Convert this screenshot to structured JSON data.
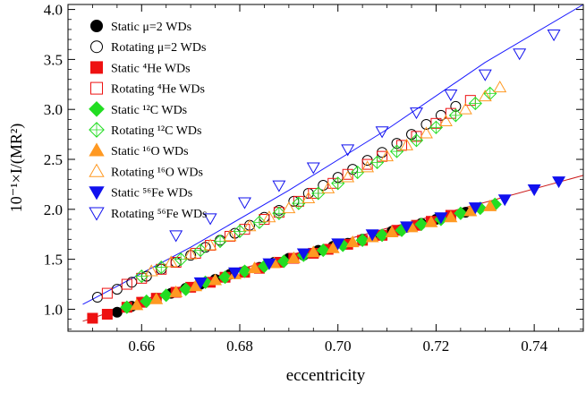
{
  "chart_data": {
    "type": "scatter",
    "xlabel": "eccentricity",
    "ylabel": "10⁻¹×I/(MR²)",
    "xlim": [
      0.645,
      0.75
    ],
    "ylim": [
      0.78,
      4.05
    ],
    "xticks": [
      "0.66",
      "0.68",
      "0.70",
      "0.72",
      "0.74"
    ],
    "xtick_values": [
      0.66,
      0.68,
      0.7,
      0.72,
      0.74
    ],
    "yticks": [
      "1.0",
      "1.5",
      "2.0",
      "2.5",
      "3.0",
      "3.5",
      "4.0"
    ],
    "ytick_values": [
      1.0,
      1.5,
      2.0,
      2.5,
      3.0,
      3.5,
      4.0
    ],
    "legend_position": "top-left",
    "fit_lines": [
      {
        "color": "#1a1aff",
        "x": [
          0.648,
          0.65,
          0.67,
          0.69,
          0.71,
          0.73,
          0.75
        ],
        "y": [
          1.05,
          1.1,
          1.62,
          2.19,
          2.8,
          3.47,
          4.05
        ]
      },
      {
        "color": "#cc1a1a",
        "x": [
          0.648,
          0.65,
          0.67,
          0.69,
          0.71,
          0.73,
          0.75
        ],
        "y": [
          0.88,
          0.91,
          1.26,
          1.54,
          1.81,
          2.07,
          2.34
        ]
      }
    ],
    "series": [
      {
        "name": "Static μ=2 WDs",
        "marker": "circle",
        "filled": true,
        "color": "#000000",
        "x": [
          0.655,
          0.658,
          0.66,
          0.663,
          0.666,
          0.669,
          0.672,
          0.675,
          0.678,
          0.681,
          0.684,
          0.687,
          0.69,
          0.693,
          0.696,
          0.699,
          0.702,
          0.705,
          0.708,
          0.711,
          0.714,
          0.717,
          0.72,
          0.723,
          0.726
        ],
        "y": [
          0.97,
          1.03,
          1.07,
          1.11,
          1.16,
          1.21,
          1.25,
          1.3,
          1.35,
          1.38,
          1.42,
          1.47,
          1.51,
          1.54,
          1.59,
          1.63,
          1.66,
          1.7,
          1.74,
          1.78,
          1.82,
          1.86,
          1.9,
          1.94,
          1.97
        ]
      },
      {
        "name": "Rotating μ=2 WDs",
        "marker": "circle",
        "filled": false,
        "color": "#000000",
        "x": [
          0.651,
          0.655,
          0.658,
          0.661,
          0.664,
          0.667,
          0.67,
          0.673,
          0.676,
          0.679,
          0.682,
          0.685,
          0.688,
          0.691,
          0.694,
          0.697,
          0.7,
          0.703,
          0.706,
          0.709,
          0.712,
          0.715,
          0.718,
          0.721,
          0.724
        ],
        "y": [
          1.12,
          1.2,
          1.27,
          1.33,
          1.4,
          1.47,
          1.54,
          1.62,
          1.69,
          1.76,
          1.84,
          1.92,
          1.99,
          2.08,
          2.16,
          2.24,
          2.32,
          2.4,
          2.49,
          2.57,
          2.66,
          2.75,
          2.85,
          2.94,
          3.03
        ]
      },
      {
        "name": "Static ⁴He WDs",
        "marker": "square",
        "filled": true,
        "color": "#ee1111",
        "x": [
          0.65,
          0.653,
          0.657,
          0.66,
          0.663,
          0.667,
          0.67,
          0.674,
          0.677,
          0.681,
          0.684,
          0.688,
          0.691,
          0.695,
          0.698,
          0.702,
          0.705,
          0.709,
          0.712,
          0.716,
          0.719,
          0.723
        ],
        "y": [
          0.91,
          0.95,
          1.02,
          1.07,
          1.11,
          1.17,
          1.22,
          1.27,
          1.32,
          1.37,
          1.41,
          1.47,
          1.51,
          1.56,
          1.6,
          1.65,
          1.69,
          1.74,
          1.79,
          1.84,
          1.88,
          1.94
        ]
      },
      {
        "name": "Rotating ⁴He WDs",
        "marker": "square",
        "filled": false,
        "color": "#ee1111",
        "x": [
          0.653,
          0.657,
          0.66,
          0.664,
          0.667,
          0.671,
          0.674,
          0.678,
          0.681,
          0.685,
          0.688,
          0.692,
          0.695,
          0.699,
          0.702,
          0.706,
          0.709,
          0.713,
          0.716,
          0.72,
          0.723,
          0.727
        ],
        "y": [
          1.16,
          1.25,
          1.31,
          1.4,
          1.47,
          1.56,
          1.64,
          1.73,
          1.8,
          1.9,
          1.97,
          2.08,
          2.16,
          2.26,
          2.35,
          2.45,
          2.53,
          2.64,
          2.73,
          2.86,
          2.96,
          3.09
        ]
      },
      {
        "name": "Static ¹²C WDs",
        "marker": "diamond",
        "filled": true,
        "color": "#22dd22",
        "x": [
          0.657,
          0.661,
          0.665,
          0.669,
          0.673,
          0.677,
          0.681,
          0.685,
          0.689,
          0.693,
          0.697,
          0.701,
          0.705,
          0.709,
          0.713,
          0.717,
          0.721,
          0.725,
          0.729,
          0.732
        ],
        "y": [
          1.02,
          1.08,
          1.14,
          1.2,
          1.27,
          1.32,
          1.38,
          1.43,
          1.48,
          1.54,
          1.59,
          1.64,
          1.69,
          1.74,
          1.79,
          1.85,
          1.9,
          1.96,
          2.01,
          2.05
        ]
      },
      {
        "name": "Rotating ¹²C WDs",
        "marker": "diamond",
        "filled": false,
        "color": "#22dd22",
        "x": [
          0.66,
          0.664,
          0.668,
          0.672,
          0.676,
          0.68,
          0.684,
          0.688,
          0.692,
          0.696,
          0.7,
          0.704,
          0.708,
          0.712,
          0.716,
          0.72,
          0.724,
          0.728,
          0.731
        ],
        "y": [
          1.33,
          1.42,
          1.5,
          1.59,
          1.68,
          1.78,
          1.87,
          1.96,
          2.06,
          2.16,
          2.26,
          2.37,
          2.47,
          2.58,
          2.69,
          2.82,
          2.94,
          3.06,
          3.16
        ]
      },
      {
        "name": "Static ¹⁶O WDs",
        "marker": "triangle-up",
        "filled": true,
        "color": "#ff9922",
        "x": [
          0.659,
          0.663,
          0.667,
          0.671,
          0.675,
          0.679,
          0.683,
          0.687,
          0.691,
          0.695,
          0.699,
          0.703,
          0.707,
          0.711,
          0.715,
          0.719,
          0.723,
          0.727,
          0.731
        ],
        "y": [
          1.04,
          1.1,
          1.17,
          1.23,
          1.29,
          1.35,
          1.41,
          1.46,
          1.51,
          1.57,
          1.61,
          1.67,
          1.72,
          1.77,
          1.82,
          1.87,
          1.92,
          1.98,
          2.03
        ]
      },
      {
        "name": "Rotating ¹⁶O WDs",
        "marker": "triangle-up",
        "filled": false,
        "color": "#ff9922",
        "x": [
          0.662,
          0.666,
          0.67,
          0.674,
          0.678,
          0.682,
          0.686,
          0.69,
          0.694,
          0.698,
          0.702,
          0.706,
          0.71,
          0.714,
          0.718,
          0.722,
          0.726,
          0.73,
          0.733
        ],
        "y": [
          1.38,
          1.47,
          1.55,
          1.64,
          1.73,
          1.83,
          1.92,
          2.01,
          2.11,
          2.21,
          2.32,
          2.42,
          2.53,
          2.64,
          2.76,
          2.88,
          3.0,
          3.13,
          3.22
        ]
      },
      {
        "name": "Static ⁵⁶Fe WDs",
        "marker": "triangle-down",
        "filled": true,
        "color": "#1111ee",
        "x": [
          0.672,
          0.679,
          0.686,
          0.693,
          0.7,
          0.707,
          0.714,
          0.721,
          0.728,
          0.734,
          0.74,
          0.745
        ],
        "y": [
          1.27,
          1.37,
          1.46,
          1.56,
          1.66,
          1.75,
          1.83,
          1.92,
          2.02,
          2.1,
          2.2,
          2.28
        ]
      },
      {
        "name": "Rotating ⁵⁶Fe WDs",
        "marker": "triangle-down",
        "filled": false,
        "color": "#1111ee",
        "x": [
          0.667,
          0.674,
          0.681,
          0.688,
          0.695,
          0.702,
          0.709,
          0.716,
          0.723,
          0.73,
          0.737,
          0.744
        ],
        "y": [
          1.74,
          1.91,
          2.07,
          2.24,
          2.42,
          2.6,
          2.78,
          2.97,
          3.15,
          3.35,
          3.56,
          3.75
        ]
      }
    ]
  }
}
